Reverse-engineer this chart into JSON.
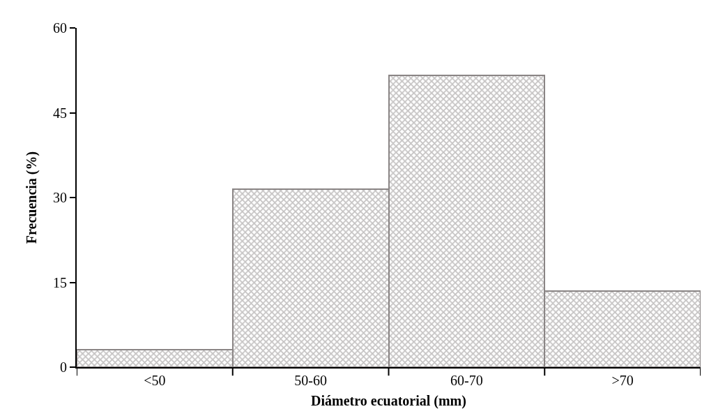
{
  "chart_data": {
    "type": "bar",
    "xlabel": "Diámetro ecuatorial (mm)",
    "ylabel": "Frecuencia (%)",
    "categories": [
      "<50",
      "50-60",
      "60-70",
      ">70"
    ],
    "values": [
      3.1,
      31.5,
      51.6,
      13.4
    ],
    "color": "#8a8585",
    "ylim": [
      0,
      60
    ],
    "yticks": [
      0,
      15,
      30,
      45,
      60
    ]
  }
}
